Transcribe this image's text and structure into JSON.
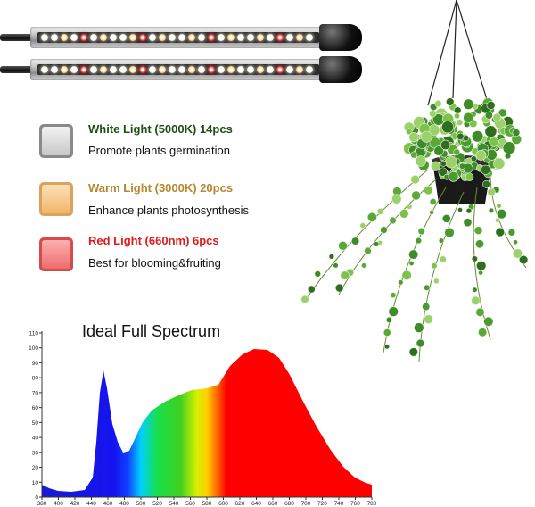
{
  "legend": [
    {
      "title": "White Light (5000K) 14pcs",
      "desc": "Promote plants germination",
      "color": "#1f4f14",
      "swatch": "#d6d6d6"
    },
    {
      "title": "Warm Light (3000K) 20pcs",
      "desc": "Enhance plants photosynthesis",
      "color": "#b8862d",
      "swatch": "#f6c07a"
    },
    {
      "title": "Red Light (660nm) 6pcs",
      "desc": "Best for blooming&fruiting",
      "color": "#e01b1b",
      "swatch": "#f07c7c"
    }
  ],
  "spectrum": {
    "title": "Ideal Full Spectrum",
    "yticks": [
      "0",
      "10",
      "20",
      "30",
      "40",
      "50",
      "60",
      "70",
      "80",
      "90",
      "100",
      "110"
    ],
    "xticks": [
      "380",
      "400",
      "420",
      "440",
      "460",
      "480",
      "500",
      "520",
      "540",
      "560",
      "580",
      "600",
      "620",
      "640",
      "660",
      "680",
      "700",
      "720",
      "740",
      "760",
      "780"
    ]
  },
  "colors": {
    "white_led": "#fffdf0",
    "warm_led": "#ffd79a",
    "red_led": "#e83a3a"
  },
  "icons": {
    "plant": "hanging-plant-icon",
    "lamp": "led-grow-light-bar-icon"
  }
}
